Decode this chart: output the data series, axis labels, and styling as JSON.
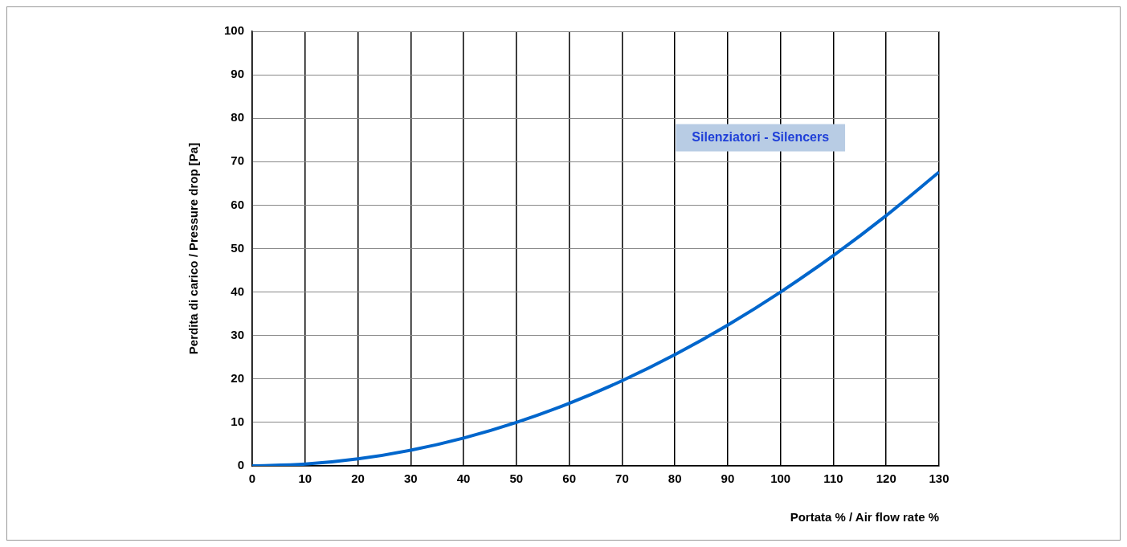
{
  "chart_data": {
    "type": "line",
    "xlabel": "Portata % / Air flow rate %",
    "ylabel": "Perdita di carico / Pressure drop [Pa]",
    "annotations": [
      "Silenziatori - Silencers"
    ],
    "x": [
      0,
      10,
      20,
      30,
      40,
      50,
      60,
      70,
      80,
      90,
      100,
      110,
      120,
      130
    ],
    "series": [
      {
        "color": "#0066cc",
        "values": [
          0,
          0.4,
          1.6,
          3.6,
          6.4,
          10,
          14.4,
          19.6,
          25.6,
          32.4,
          40,
          48.4,
          57.6,
          67.6
        ]
      }
    ],
    "xlim": [
      0,
      130
    ],
    "xticks": [
      0,
      10,
      20,
      30,
      40,
      50,
      60,
      70,
      80,
      90,
      100,
      110,
      120,
      130
    ],
    "ylim": [
      0,
      100
    ],
    "yticks": [
      0,
      10,
      20,
      30,
      40,
      50,
      60,
      70,
      80,
      90,
      100
    ],
    "grid": true,
    "legend": false,
    "marker": "none",
    "line_style": "solid"
  }
}
